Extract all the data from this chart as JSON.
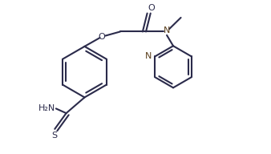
{
  "background": "#ffffff",
  "line_color": "#2b2b4b",
  "bond_color": "#5a3e1b",
  "line_width": 1.5,
  "font_size": 8,
  "figsize": [
    3.38,
    1.92
  ],
  "dpi": 100,
  "xlim": [
    0,
    10
  ],
  "ylim": [
    0,
    6
  ]
}
